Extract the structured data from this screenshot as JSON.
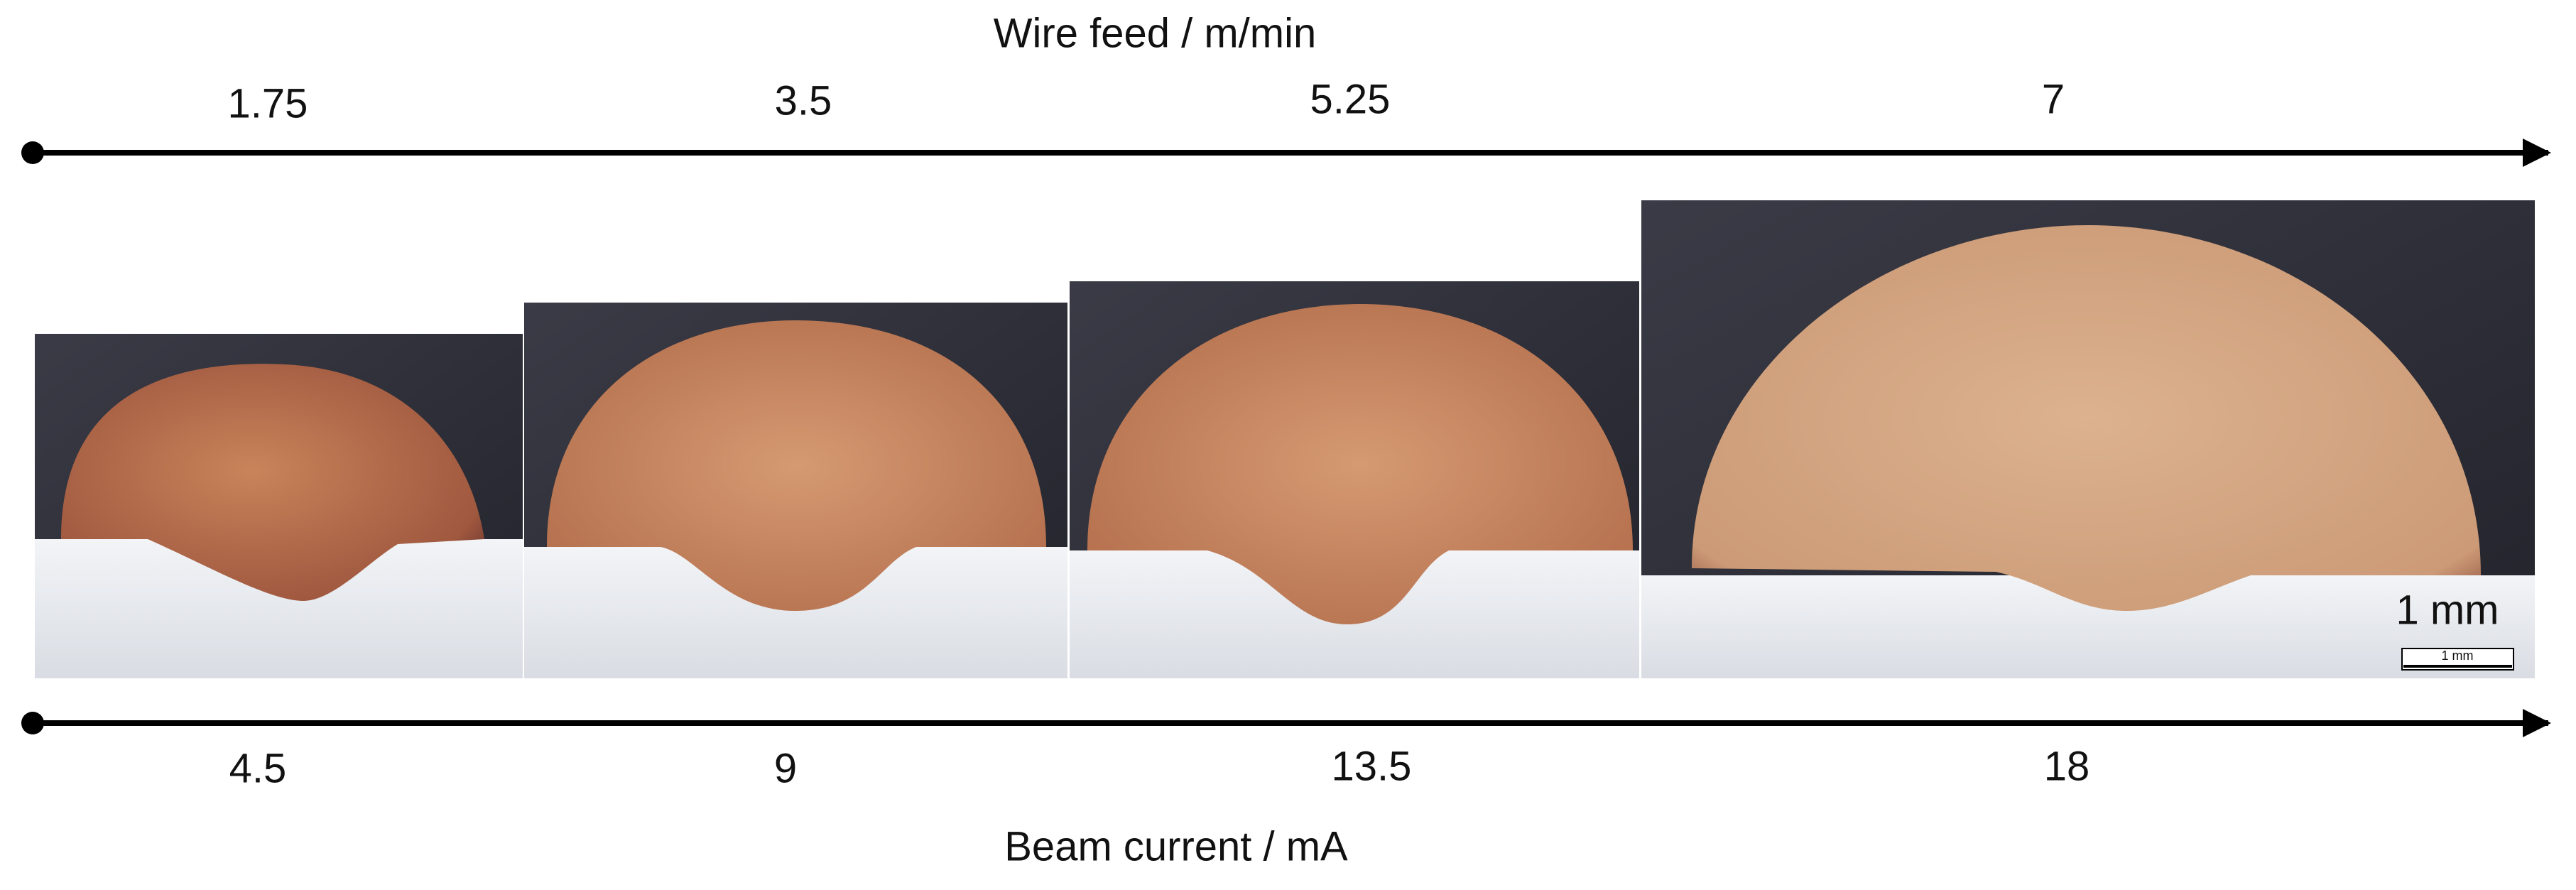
{
  "top_axis": {
    "title": "Wire feed / m/min",
    "ticks": [
      1.75,
      3.5,
      5.25,
      7
    ]
  },
  "bottom_axis": {
    "title": "Beam current / mA",
    "ticks": [
      4.5,
      9,
      13.5,
      18
    ]
  },
  "scale_bar": {
    "label": "1 mm",
    "bar_label": "1 mm"
  }
}
